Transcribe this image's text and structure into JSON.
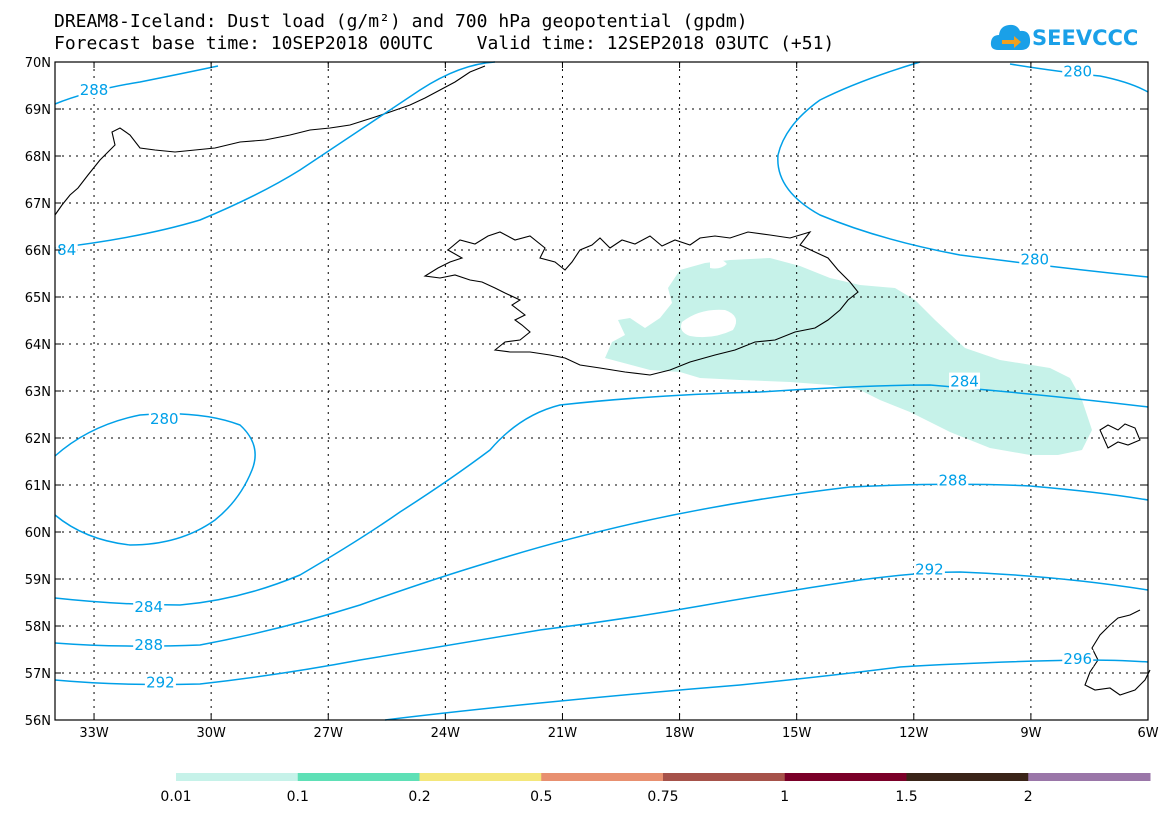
{
  "title": {
    "line1": "DREAM8-Iceland: Dust load (g/m²) and 700 hPa geopotential (gpdm)",
    "line2": "Forecast base time: 10SEP2018 00UTC    Valid time: 12SEP2018 03UTC (+51)"
  },
  "logo": {
    "text": "SEEVCCC",
    "color": "#1aa0e8"
  },
  "map": {
    "lon_range": [
      -34,
      -6
    ],
    "lat_range": [
      56,
      70
    ],
    "x_ticks": [
      {
        "lon": -33,
        "label": "33W"
      },
      {
        "lon": -30,
        "label": "30W"
      },
      {
        "lon": -27,
        "label": "27W"
      },
      {
        "lon": -24,
        "label": "24W"
      },
      {
        "lon": -21,
        "label": "21W"
      },
      {
        "lon": -18,
        "label": "18W"
      },
      {
        "lon": -15,
        "label": "15W"
      },
      {
        "lon": -12,
        "label": "12W"
      },
      {
        "lon": -9,
        "label": "9W"
      },
      {
        "lon": -6,
        "label": "6W"
      }
    ],
    "y_ticks": [
      {
        "lat": 56,
        "label": "56N"
      },
      {
        "lat": 57,
        "label": "57N"
      },
      {
        "lat": 58,
        "label": "58N"
      },
      {
        "lat": 59,
        "label": "59N"
      },
      {
        "lat": 60,
        "label": "60N"
      },
      {
        "lat": 61,
        "label": "61N"
      },
      {
        "lat": 62,
        "label": "62N"
      },
      {
        "lat": 63,
        "label": "63N"
      },
      {
        "lat": 64,
        "label": "64N"
      },
      {
        "lat": 65,
        "label": "65N"
      },
      {
        "lat": 66,
        "label": "66N"
      },
      {
        "lat": 67,
        "label": "67N"
      },
      {
        "lat": 68,
        "label": "68N"
      },
      {
        "lat": 69,
        "label": "69N"
      },
      {
        "lat": 70,
        "label": "70N"
      }
    ],
    "contour_color": "#00a0e8",
    "contour_labels": [
      {
        "text": "288",
        "lon": -33.0,
        "lat": 69.4
      },
      {
        "text": "84",
        "lon": -33.7,
        "lat": 66.0
      },
      {
        "text": "280",
        "lon": -7.8,
        "lat": 69.8
      },
      {
        "text": "280",
        "lon": -8.9,
        "lat": 65.8
      },
      {
        "text": "284",
        "lon": -10.7,
        "lat": 63.2
      },
      {
        "text": "280",
        "lon": -31.2,
        "lat": 62.4
      },
      {
        "text": "284",
        "lon": -31.6,
        "lat": 58.4
      },
      {
        "text": "288",
        "lon": -31.6,
        "lat": 57.6
      },
      {
        "text": "292",
        "lon": -31.3,
        "lat": 56.8
      },
      {
        "text": "288",
        "lon": -11.0,
        "lat": 61.1
      },
      {
        "text": "292",
        "lon": -11.6,
        "lat": 59.2
      },
      {
        "text": "296",
        "lon": -7.8,
        "lat": 57.3
      }
    ]
  },
  "colorbar": {
    "colors": [
      "#c6f2e9",
      "#5ee0b6",
      "#f4e77a",
      "#e89070",
      "#a6524a",
      "#7a0028",
      "#3a2418",
      "#9a76a8"
    ],
    "labels": [
      "0.01",
      "0.1",
      "0.2",
      "0.5",
      "0.75",
      "1",
      "1.5",
      "2"
    ]
  }
}
